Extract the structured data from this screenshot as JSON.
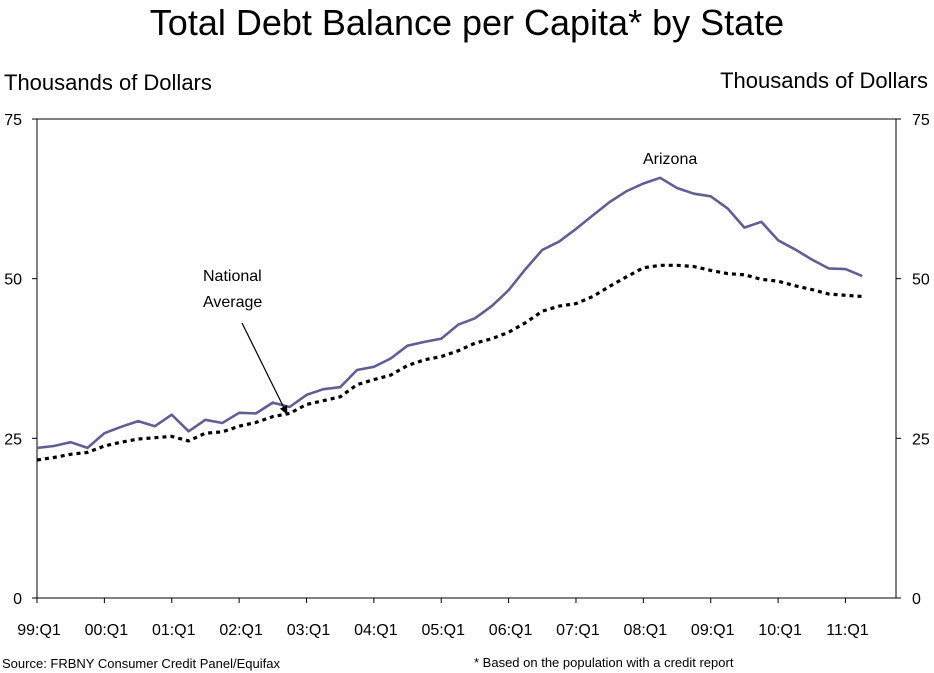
{
  "header": {
    "title": "Total Debt Balance per Capita* by State",
    "unit_left": "Thousands of Dollars",
    "unit_right": "Thousands of Dollars"
  },
  "footer": {
    "source": "Source: FRBNY Consumer Credit Panel/Equifax",
    "footnote": "* Based on the population with a credit report"
  },
  "annotations": {
    "arizona": "Arizona",
    "national_line1": "National",
    "national_line2": "Average"
  },
  "colors": {
    "arizona": "#5f5f96",
    "arizona_label": "#7a2a7a",
    "national": "#000000"
  },
  "chart_data": {
    "type": "line",
    "title": "Total Debt Balance per Capita* by State",
    "ylabel": "Thousands of Dollars",
    "ylim": [
      0,
      75
    ],
    "yticks": [
      0,
      25,
      50,
      75
    ],
    "xlim": [
      1999.0,
      2011.75
    ],
    "x_tick_labels": [
      "99:Q1",
      "00:Q1",
      "01:Q1",
      "02:Q1",
      "03:Q1",
      "04:Q1",
      "05:Q1",
      "06:Q1",
      "07:Q1",
      "08:Q1",
      "09:Q1",
      "10:Q1",
      "11:Q1"
    ],
    "x_tick_values": [
      1999,
      2000,
      2001,
      2002,
      2003,
      2004,
      2005,
      2006,
      2007,
      2008,
      2009,
      2010,
      2011
    ],
    "grid": false,
    "series": [
      {
        "name": "Arizona",
        "style": "solid",
        "x": [
          1999.0,
          1999.25,
          1999.5,
          1999.75,
          2000.0,
          2000.25,
          2000.5,
          2000.75,
          2001.0,
          2001.25,
          2001.5,
          2001.75,
          2002.0,
          2002.25,
          2002.5,
          2002.75,
          2003.0,
          2003.25,
          2003.5,
          2003.75,
          2004.0,
          2004.25,
          2004.5,
          2004.75,
          2005.0,
          2005.25,
          2005.5,
          2005.75,
          2006.0,
          2006.25,
          2006.5,
          2006.75,
          2007.0,
          2007.25,
          2007.5,
          2007.75,
          2008.0,
          2008.25,
          2008.5,
          2008.75,
          2009.0,
          2009.25,
          2009.5,
          2009.75,
          2010.0,
          2010.25,
          2010.5,
          2010.75,
          2011.0,
          2011.25
        ],
        "y": [
          23.5,
          23.8,
          24.4,
          23.5,
          25.8,
          26.8,
          27.7,
          26.9,
          28.7,
          26.1,
          27.9,
          27.4,
          29.0,
          28.9,
          30.6,
          29.9,
          31.8,
          32.7,
          33.0,
          35.7,
          36.2,
          37.5,
          39.5,
          40.1,
          40.6,
          42.8,
          43.8,
          45.7,
          48.2,
          51.5,
          54.5,
          55.8,
          57.8,
          59.9,
          62.0,
          63.7,
          64.9,
          65.8,
          64.2,
          63.3,
          62.9,
          61.0,
          58.0,
          58.9,
          56.0,
          54.6,
          53.0,
          51.6,
          51.5,
          50.4
        ]
      },
      {
        "name": "National Average",
        "style": "dashed",
        "x": [
          1999.0,
          1999.25,
          1999.5,
          1999.75,
          2000.0,
          2000.25,
          2000.5,
          2000.75,
          2001.0,
          2001.25,
          2001.5,
          2001.75,
          2002.0,
          2002.25,
          2002.5,
          2002.75,
          2003.0,
          2003.25,
          2003.5,
          2003.75,
          2004.0,
          2004.25,
          2004.5,
          2004.75,
          2005.0,
          2005.25,
          2005.5,
          2005.75,
          2006.0,
          2006.25,
          2006.5,
          2006.75,
          2007.0,
          2007.25,
          2007.5,
          2007.75,
          2008.0,
          2008.25,
          2008.5,
          2008.75,
          2009.0,
          2009.25,
          2009.5,
          2009.75,
          2010.0,
          2010.25,
          2010.5,
          2010.75,
          2011.0,
          2011.25
        ],
        "y": [
          21.6,
          22.0,
          22.5,
          22.8,
          23.8,
          24.4,
          24.9,
          25.1,
          25.3,
          24.6,
          25.8,
          26.0,
          26.9,
          27.5,
          28.4,
          28.9,
          30.3,
          30.9,
          31.5,
          33.4,
          34.2,
          34.9,
          36.4,
          37.3,
          37.8,
          38.7,
          39.9,
          40.6,
          41.6,
          43.1,
          44.9,
          45.7,
          46.1,
          47.2,
          48.8,
          50.3,
          51.7,
          52.1,
          52.1,
          51.9,
          51.3,
          50.8,
          50.6,
          49.9,
          49.6,
          48.9,
          48.3,
          47.6,
          47.4,
          47.2
        ]
      }
    ]
  }
}
